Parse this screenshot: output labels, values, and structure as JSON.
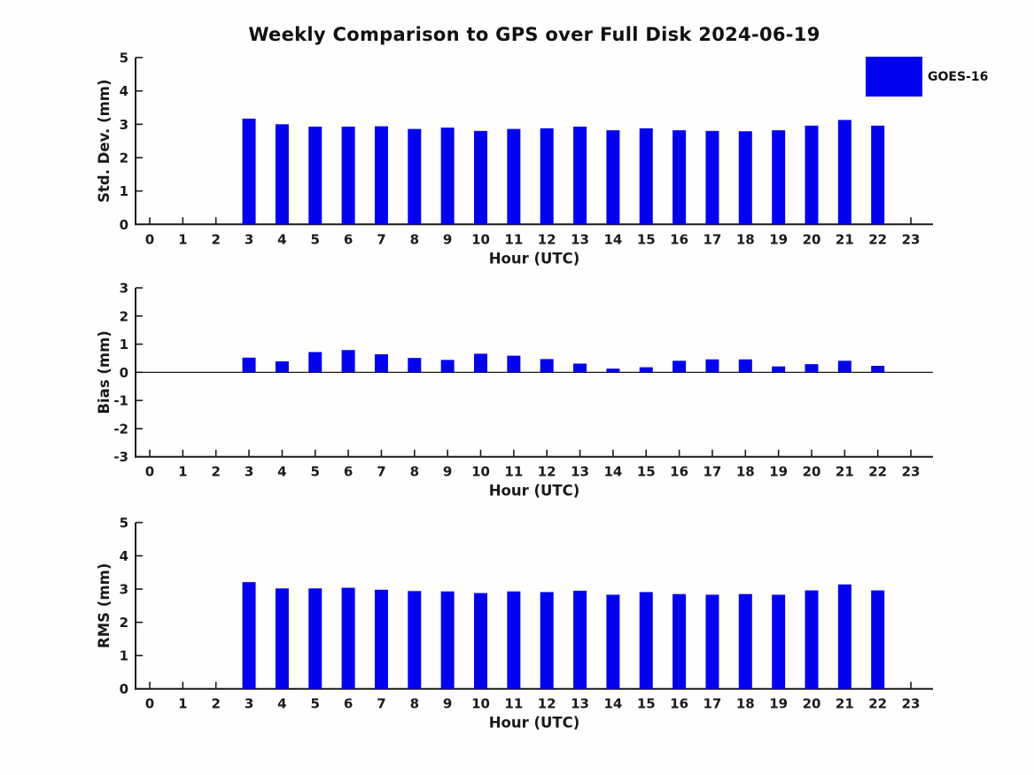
{
  "title": "Weekly Comparison to GPS over Full Disk 2024-06-19",
  "legend": {
    "label": "GOES-16",
    "color": "#0202ef",
    "position": "top-right"
  },
  "chart_data": [
    {
      "id": "std_dev",
      "type": "bar",
      "ylabel": "Std. Dev. (mm)",
      "xlabel": "Hour (UTC)",
      "ylim": [
        0,
        5
      ],
      "yticks": [
        0,
        1,
        2,
        3,
        4,
        5
      ],
      "grid": false,
      "zero_line": false,
      "categories": [
        "0",
        "1",
        "2",
        "3",
        "4",
        "5",
        "6",
        "7",
        "8",
        "9",
        "10",
        "11",
        "12",
        "13",
        "14",
        "15",
        "16",
        "17",
        "18",
        "19",
        "20",
        "21",
        "22",
        "23"
      ],
      "series": [
        {
          "name": "GOES-16",
          "values": [
            0,
            0,
            0,
            3.17,
            3.0,
            2.93,
            2.93,
            2.94,
            2.86,
            2.9,
            2.8,
            2.86,
            2.88,
            2.93,
            2.82,
            2.88,
            2.82,
            2.8,
            2.79,
            2.82,
            2.96,
            3.13,
            2.96,
            0
          ]
        }
      ]
    },
    {
      "id": "bias",
      "type": "bar",
      "ylabel": "Bias (mm)",
      "xlabel": "Hour (UTC)",
      "ylim": [
        -3,
        3
      ],
      "yticks": [
        -3,
        -2,
        -1,
        0,
        1,
        2,
        3
      ],
      "grid": false,
      "zero_line": true,
      "categories": [
        "0",
        "1",
        "2",
        "3",
        "4",
        "5",
        "6",
        "7",
        "8",
        "9",
        "10",
        "11",
        "12",
        "13",
        "14",
        "15",
        "16",
        "17",
        "18",
        "19",
        "20",
        "21",
        "22",
        "23"
      ],
      "series": [
        {
          "name": "GOES-16",
          "values": [
            0,
            0,
            0,
            0.52,
            0.39,
            0.72,
            0.79,
            0.64,
            0.51,
            0.44,
            0.66,
            0.59,
            0.47,
            0.31,
            0.13,
            0.18,
            0.41,
            0.46,
            0.46,
            0.21,
            0.29,
            0.41,
            0.23,
            0
          ]
        }
      ]
    },
    {
      "id": "rms",
      "type": "bar",
      "ylabel": "RMS (mm)",
      "xlabel": "Hour (UTC)",
      "ylim": [
        0,
        5
      ],
      "yticks": [
        0,
        1,
        2,
        3,
        4,
        5
      ],
      "grid": false,
      "zero_line": false,
      "categories": [
        "0",
        "1",
        "2",
        "3",
        "4",
        "5",
        "6",
        "7",
        "8",
        "9",
        "10",
        "11",
        "12",
        "13",
        "14",
        "15",
        "16",
        "17",
        "18",
        "19",
        "20",
        "21",
        "22",
        "23"
      ],
      "series": [
        {
          "name": "GOES-16",
          "values": [
            0,
            0,
            0,
            3.21,
            3.02,
            3.02,
            3.04,
            2.98,
            2.94,
            2.93,
            2.88,
            2.93,
            2.91,
            2.95,
            2.83,
            2.91,
            2.85,
            2.83,
            2.85,
            2.83,
            2.96,
            3.14,
            2.96,
            0
          ]
        }
      ]
    }
  ]
}
